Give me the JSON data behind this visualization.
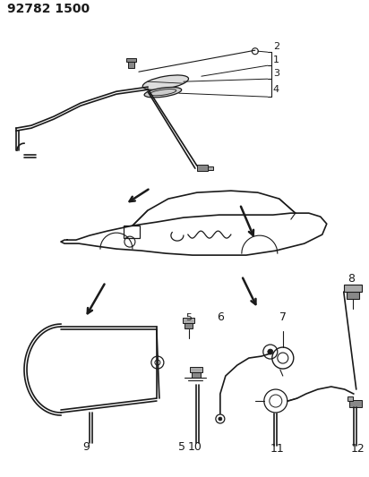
{
  "title": "92782 1500",
  "bg_color": "#ffffff",
  "line_color": "#1a1a1a",
  "title_fontsize": 10,
  "label_fontsize": 8
}
